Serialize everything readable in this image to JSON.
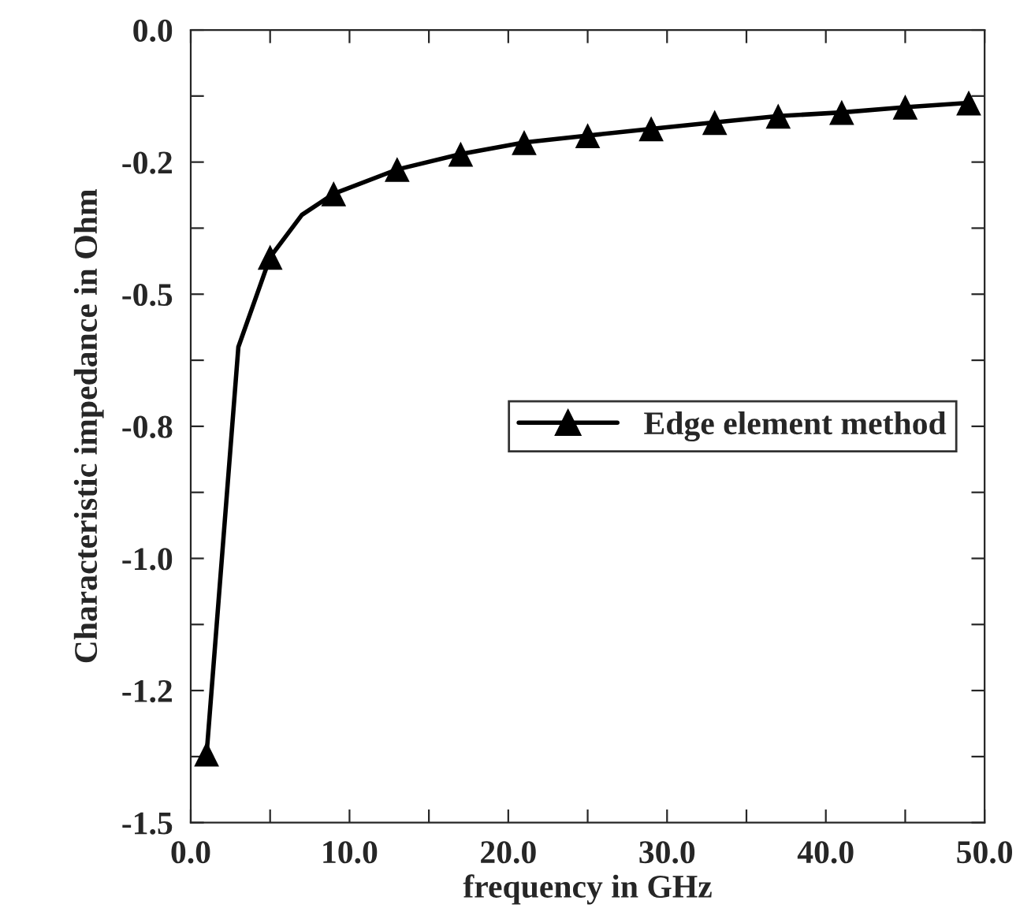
{
  "chart_data": {
    "type": "line",
    "xlabel": "frequency in GHz",
    "ylabel": "Characteristic impedance in Ohm",
    "series": [
      {
        "color": "#000000",
        "marker": "none",
        "x": [
          1,
          3,
          5,
          7,
          9,
          13,
          17,
          21,
          25,
          29,
          33,
          37,
          41,
          45,
          49
        ],
        "values": [
          -1.37,
          -0.6,
          -0.43,
          -0.35,
          -0.31,
          -0.264,
          -0.235,
          -0.213,
          -0.2,
          -0.187,
          -0.175,
          -0.163,
          -0.156,
          -0.146,
          -0.138
        ]
      },
      {
        "type": "scatter",
        "name": "Edge element method",
        "color": "#000000",
        "marker": "triangle",
        "x": [
          1,
          5,
          9,
          13,
          17,
          21,
          25,
          29,
          33,
          37,
          41,
          45,
          49
        ],
        "values": [
          -1.37,
          -0.43,
          -0.31,
          -0.264,
          -0.235,
          -0.213,
          -0.2,
          -0.187,
          -0.175,
          -0.163,
          -0.156,
          -0.146,
          -0.138
        ]
      }
    ],
    "xlim": [
      0,
      50
    ],
    "ylim": [
      -1.5,
      0
    ],
    "xticks": [
      {
        "value": 0,
        "label": "0.0"
      },
      {
        "value": 5,
        "label": null
      },
      {
        "value": 10,
        "label": "10.0"
      },
      {
        "value": 15,
        "label": null
      },
      {
        "value": 20,
        "label": "20.0"
      },
      {
        "value": 25,
        "label": null
      },
      {
        "value": 30,
        "label": "30.0"
      },
      {
        "value": 35,
        "label": null
      },
      {
        "value": 40,
        "label": "40.0"
      },
      {
        "value": 45,
        "label": null
      },
      {
        "value": 50,
        "label": "50.0"
      }
    ],
    "yticks": [
      {
        "value": -1.5,
        "label": "-1.5"
      },
      {
        "value": -1.375,
        "label": null
      },
      {
        "value": -1.25,
        "label": "-1.2"
      },
      {
        "value": -1.125,
        "label": null
      },
      {
        "value": -1.0,
        "label": "-1.0"
      },
      {
        "value": -0.875,
        "label": null
      },
      {
        "value": -0.75,
        "label": "-0.8"
      },
      {
        "value": -0.625,
        "label": null
      },
      {
        "value": -0.5,
        "label": "-0.5"
      },
      {
        "value": -0.375,
        "label": null
      },
      {
        "value": -0.25,
        "label": "-0.2"
      },
      {
        "value": -0.125,
        "label": null
      },
      {
        "value": 0,
        "label": "0.0"
      }
    ],
    "grid": false,
    "legend": "right",
    "line_style": "solid"
  }
}
